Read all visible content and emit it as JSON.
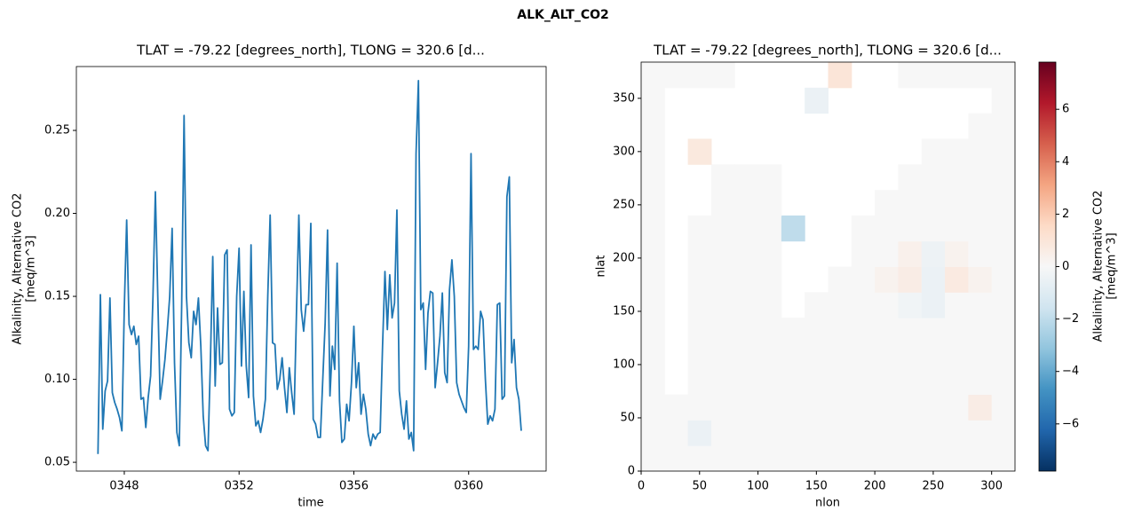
{
  "title": "ALK_ALT_CO2",
  "chart_data": [
    {
      "type": "line",
      "title": "TLAT = -79.22 [degrees_north], TLONG = 320.6 [d...",
      "xlabel": "time",
      "ylabel": [
        "Alkalinity, Alternative CO2",
        "[meq/m^3]"
      ],
      "color": "#1f77b4",
      "x": [
        347.083,
        347.167,
        347.25,
        347.333,
        347.417,
        347.5,
        347.583,
        347.667,
        347.75,
        347.833,
        347.917,
        348.0,
        348.083,
        348.167,
        348.25,
        348.333,
        348.417,
        348.5,
        348.583,
        348.667,
        348.75,
        348.833,
        348.917,
        349.0,
        349.083,
        349.167,
        349.25,
        349.333,
        349.417,
        349.5,
        349.583,
        349.667,
        349.75,
        349.833,
        349.917,
        350.0,
        350.083,
        350.167,
        350.25,
        350.333,
        350.417,
        350.5,
        350.583,
        350.667,
        350.75,
        350.833,
        350.917,
        351.0,
        351.083,
        351.167,
        351.25,
        351.333,
        351.417,
        351.5,
        351.583,
        351.667,
        351.75,
        351.833,
        351.917,
        352.0,
        352.083,
        352.167,
        352.25,
        352.333,
        352.417,
        352.5,
        352.583,
        352.667,
        352.75,
        352.833,
        352.917,
        353.0,
        353.083,
        353.167,
        353.25,
        353.333,
        353.417,
        353.5,
        353.583,
        353.667,
        353.75,
        353.833,
        353.917,
        354.0,
        354.083,
        354.167,
        354.25,
        354.333,
        354.417,
        354.5,
        354.583,
        354.667,
        354.75,
        354.833,
        354.917,
        355.0,
        355.083,
        355.167,
        355.25,
        355.333,
        355.417,
        355.5,
        355.583,
        355.667,
        355.75,
        355.833,
        355.917,
        356.0,
        356.083,
        356.167,
        356.25,
        356.333,
        356.417,
        356.5,
        356.583,
        356.667,
        356.75,
        356.833,
        356.917,
        357.0,
        357.083,
        357.167,
        357.25,
        357.333,
        357.417,
        357.5,
        357.583,
        357.667,
        357.75,
        357.833,
        357.917,
        358.0,
        358.083,
        358.167,
        358.25,
        358.333,
        358.417,
        358.5,
        358.583,
        358.667,
        358.75,
        358.833,
        358.917,
        359.0,
        359.083,
        359.167,
        359.25,
        359.333,
        359.417,
        359.5,
        359.583,
        359.667,
        359.75,
        359.833,
        359.917,
        360.0,
        360.083,
        360.167,
        360.25,
        360.333,
        360.417,
        360.5,
        360.583,
        360.667,
        360.75,
        360.833,
        360.917,
        361.0,
        361.083,
        361.167,
        361.25,
        361.333,
        361.417,
        361.5,
        361.583,
        361.667,
        361.75,
        361.833
      ],
      "values": [
        0.055,
        0.151,
        0.07,
        0.093,
        0.099,
        0.149,
        0.092,
        0.086,
        0.082,
        0.077,
        0.069,
        0.143,
        0.196,
        0.133,
        0.127,
        0.132,
        0.121,
        0.126,
        0.088,
        0.089,
        0.071,
        0.089,
        0.102,
        0.15,
        0.213,
        0.15,
        0.088,
        0.099,
        0.112,
        0.13,
        0.15,
        0.191,
        0.11,
        0.068,
        0.06,
        0.145,
        0.259,
        0.15,
        0.122,
        0.113,
        0.141,
        0.133,
        0.149,
        0.12,
        0.078,
        0.06,
        0.057,
        0.11,
        0.174,
        0.096,
        0.143,
        0.109,
        0.11,
        0.175,
        0.178,
        0.082,
        0.078,
        0.08,
        0.15,
        0.179,
        0.108,
        0.153,
        0.108,
        0.089,
        0.181,
        0.09,
        0.072,
        0.075,
        0.068,
        0.076,
        0.088,
        0.15,
        0.199,
        0.122,
        0.121,
        0.094,
        0.1,
        0.113,
        0.095,
        0.08,
        0.107,
        0.092,
        0.079,
        0.14,
        0.199,
        0.142,
        0.129,
        0.145,
        0.145,
        0.194,
        0.076,
        0.073,
        0.065,
        0.065,
        0.1,
        0.134,
        0.19,
        0.09,
        0.12,
        0.106,
        0.17,
        0.087,
        0.062,
        0.064,
        0.085,
        0.075,
        0.098,
        0.132,
        0.095,
        0.11,
        0.079,
        0.091,
        0.082,
        0.067,
        0.06,
        0.067,
        0.064,
        0.067,
        0.068,
        0.12,
        0.165,
        0.13,
        0.163,
        0.137,
        0.146,
        0.202,
        0.093,
        0.079,
        0.07,
        0.087,
        0.064,
        0.068,
        0.057,
        0.236,
        0.28,
        0.142,
        0.146,
        0.106,
        0.14,
        0.153,
        0.152,
        0.095,
        0.11,
        0.126,
        0.152,
        0.104,
        0.098,
        0.154,
        0.172,
        0.15,
        0.098,
        0.091,
        0.087,
        0.083,
        0.08,
        0.12,
        0.236,
        0.118,
        0.12,
        0.118,
        0.141,
        0.136,
        0.1,
        0.073,
        0.078,
        0.075,
        0.082,
        0.145,
        0.146,
        0.088,
        0.09,
        0.21,
        0.222,
        0.11,
        0.124,
        0.095,
        0.088,
        0.069
      ],
      "xlim": [
        346.33,
        362.7
      ],
      "xticks": [
        {
          "value": 348,
          "label": "0348"
        },
        {
          "value": 352,
          "label": "0352"
        },
        {
          "value": 356,
          "label": "0356"
        },
        {
          "value": 360,
          "label": "0360"
        }
      ],
      "ylim": [
        0.0447,
        0.2885
      ],
      "yticks": [
        0.05,
        {
          "value": 0.1,
          "label": "0.10"
        },
        0.15,
        {
          "value": 0.2,
          "label": "0.20"
        },
        0.25
      ]
    },
    {
      "type": "heatmap",
      "title": "TLAT = -79.22 [degrees_north], TLONG = 320.6 [d...",
      "xlabel": "nlon",
      "ylabel": "nlat",
      "clabel": [
        "Alkalinity, Alternative CO2",
        "[meq/m^3]"
      ],
      "xlim": [
        0,
        320
      ],
      "xticks": [
        0,
        50,
        100,
        150,
        200,
        250,
        300
      ],
      "ylim": [
        0,
        384
      ],
      "yticks": [
        0,
        50,
        100,
        150,
        200,
        250,
        300,
        350
      ],
      "clim": [
        -7.8,
        7.8
      ],
      "cticks": [
        {
          "value": -6,
          "label": "−6"
        },
        {
          "value": -4,
          "label": "−4"
        },
        {
          "value": -2,
          "label": "−2"
        },
        0,
        2,
        4,
        6
      ],
      "colormap": [
        "#053061",
        "#2166ac",
        "#4393c3",
        "#92c5de",
        "#d1e5f0",
        "#f7f7f7",
        "#fddbc7",
        "#f4a582",
        "#d6604d",
        "#b2182b",
        "#67001f"
      ],
      "z": [
        [
          0,
          0,
          0,
          0,
          0,
          0,
          0,
          0,
          0,
          0,
          0,
          0,
          0,
          0,
          0,
          0
        ],
        [
          0,
          0,
          -0.5,
          0,
          0,
          0,
          0,
          0,
          0,
          0,
          0,
          0,
          0,
          0,
          0,
          0
        ],
        [
          0,
          0,
          0,
          0,
          0,
          0,
          0,
          0,
          0,
          0,
          0,
          0,
          0,
          0,
          0.6,
          0
        ],
        [
          0,
          null,
          0,
          0,
          0,
          0,
          0,
          0,
          0,
          0,
          0,
          0,
          0,
          0,
          0,
          0
        ],
        [
          0,
          null,
          0,
          0,
          0,
          0,
          0,
          0,
          0,
          0,
          0,
          0,
          0,
          0,
          0,
          0
        ],
        [
          0,
          null,
          0,
          0,
          0,
          0,
          0,
          0,
          0,
          0,
          0,
          0,
          0,
          0,
          0,
          0
        ],
        [
          0,
          null,
          0,
          0,
          0,
          0,
          null,
          0,
          0,
          0,
          0,
          -0.3,
          -0.5,
          0,
          0,
          0
        ],
        [
          0,
          null,
          0,
          0,
          0,
          0,
          null,
          null,
          0,
          0,
          0.3,
          0.6,
          -0.5,
          0.7,
          0.3,
          0
        ],
        [
          0,
          null,
          0,
          0,
          0,
          0,
          null,
          null,
          null,
          0,
          0,
          0.4,
          -0.4,
          0.3,
          0,
          0
        ],
        [
          0,
          null,
          0,
          0,
          0,
          0,
          -2,
          null,
          null,
          0,
          0,
          0,
          0,
          0,
          0,
          0
        ],
        [
          0,
          null,
          null,
          0,
          0,
          0,
          null,
          null,
          null,
          null,
          0,
          0,
          0,
          0,
          0,
          0
        ],
        [
          0,
          null,
          null,
          0,
          0,
          0,
          null,
          null,
          null,
          null,
          null,
          0,
          0,
          0,
          0,
          0
        ],
        [
          0,
          null,
          0.8,
          null,
          null,
          null,
          null,
          null,
          null,
          null,
          null,
          null,
          0,
          0,
          0,
          0
        ],
        [
          0,
          null,
          null,
          null,
          null,
          null,
          null,
          null,
          null,
          null,
          null,
          null,
          null,
          null,
          0,
          0
        ],
        [
          0,
          null,
          null,
          null,
          null,
          null,
          null,
          -0.5,
          null,
          null,
          null,
          null,
          null,
          null,
          null,
          0
        ],
        [
          0,
          0,
          0,
          0,
          null,
          null,
          null,
          null,
          1.0,
          null,
          null,
          0,
          0,
          0,
          0,
          0
        ]
      ]
    }
  ]
}
